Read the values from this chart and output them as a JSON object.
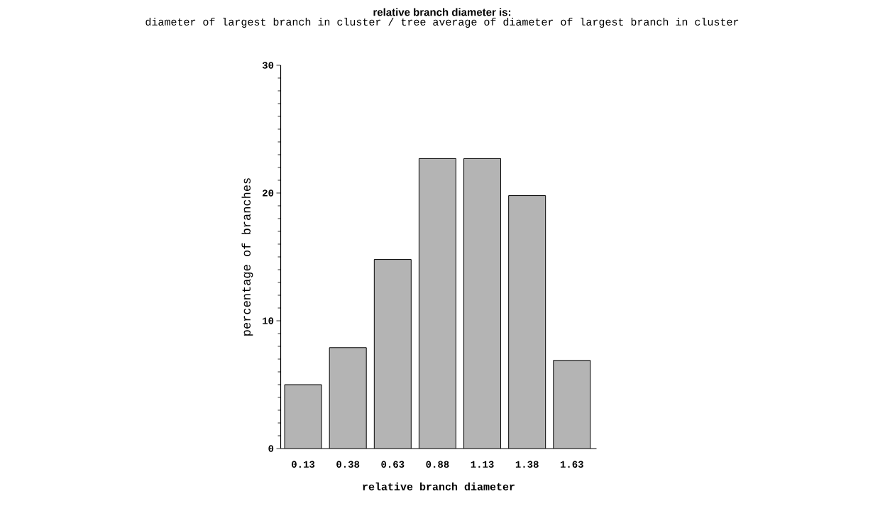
{
  "chart_data": {
    "type": "bar",
    "title": "relative branch diameter is:",
    "subtitle": "diameter of largest branch in cluster / tree average of diameter of largest branch in cluster",
    "xlabel": "relative branch diameter",
    "ylabel": "percentage of branches",
    "categories": [
      "0.13",
      "0.38",
      "0.63",
      "0.88",
      "1.13",
      "1.38",
      "1.63"
    ],
    "values": [
      5,
      7.9,
      14.8,
      22.7,
      22.7,
      19.8,
      6.9
    ],
    "color": "#b4b4b4",
    "ylim": [
      0,
      30
    ],
    "yticks": [
      0,
      10,
      20,
      30
    ],
    "grid": false
  }
}
